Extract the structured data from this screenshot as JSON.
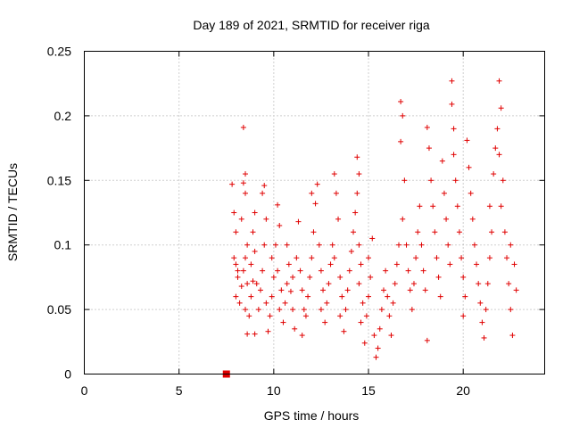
{
  "chart_data": {
    "type": "scatter",
    "title": "Day 189 of 2021, SRMTID for receiver riga",
    "xlabel": "GPS time / hours",
    "ylabel": "SRMTID / TECUs",
    "xlim": [
      0,
      24.3
    ],
    "ylim": [
      0,
      0.25
    ],
    "xticks": [
      "0",
      "5",
      "10",
      "15",
      "20"
    ],
    "yticks": [
      "0",
      "0.05",
      "0.1",
      "0.15",
      "0.2",
      "0.25"
    ],
    "grid": true,
    "legend": "none",
    "marker": "plus",
    "color": "#e00000",
    "series": [
      {
        "marker_point": [
          7.5,
          0.0
        ],
        "points": [
          [
            7.8,
            0.147
          ],
          [
            7.9,
            0.125
          ],
          [
            8.0,
            0.11
          ],
          [
            7.9,
            0.09
          ],
          [
            8.0,
            0.085
          ],
          [
            8.1,
            0.075
          ],
          [
            8.0,
            0.06
          ],
          [
            8.2,
            0.055
          ],
          [
            8.1,
            0.08
          ],
          [
            8.3,
            0.068
          ],
          [
            8.4,
            0.191
          ],
          [
            8.5,
            0.155
          ],
          [
            8.4,
            0.148
          ],
          [
            8.5,
            0.14
          ],
          [
            8.3,
            0.12
          ],
          [
            8.6,
            0.1
          ],
          [
            8.5,
            0.09
          ],
          [
            8.4,
            0.08
          ],
          [
            8.6,
            0.07
          ],
          [
            8.5,
            0.05
          ],
          [
            8.6,
            0.031
          ],
          [
            8.7,
            0.045
          ],
          [
            8.8,
            0.06
          ],
          [
            8.9,
            0.072
          ],
          [
            8.8,
            0.085
          ],
          [
            9.0,
            0.095
          ],
          [
            8.9,
            0.11
          ],
          [
            9.0,
            0.125
          ],
          [
            9.1,
            0.07
          ],
          [
            9.2,
            0.05
          ],
          [
            9.0,
            0.031
          ],
          [
            9.3,
            0.065
          ],
          [
            9.4,
            0.08
          ],
          [
            9.5,
            0.146
          ],
          [
            9.4,
            0.14
          ],
          [
            9.6,
            0.12
          ],
          [
            9.5,
            0.1
          ],
          [
            9.6,
            0.055
          ],
          [
            9.7,
            0.033
          ],
          [
            9.8,
            0.045
          ],
          [
            9.9,
            0.06
          ],
          [
            10.0,
            0.075
          ],
          [
            9.9,
            0.09
          ],
          [
            10.1,
            0.1
          ],
          [
            10.2,
            0.131
          ],
          [
            10.3,
            0.115
          ],
          [
            10.2,
            0.08
          ],
          [
            10.4,
            0.065
          ],
          [
            10.3,
            0.05
          ],
          [
            10.5,
            0.04
          ],
          [
            10.6,
            0.055
          ],
          [
            10.7,
            0.07
          ],
          [
            10.8,
            0.085
          ],
          [
            10.7,
            0.1
          ],
          [
            10.9,
            0.064
          ],
          [
            11.0,
            0.05
          ],
          [
            11.1,
            0.035
          ],
          [
            11.0,
            0.075
          ],
          [
            11.2,
            0.09
          ],
          [
            11.3,
            0.118
          ],
          [
            11.4,
            0.08
          ],
          [
            11.5,
            0.065
          ],
          [
            11.6,
            0.05
          ],
          [
            11.5,
            0.03
          ],
          [
            11.7,
            0.045
          ],
          [
            11.8,
            0.06
          ],
          [
            11.9,
            0.075
          ],
          [
            12.0,
            0.09
          ],
          [
            12.1,
            0.11
          ],
          [
            12.2,
            0.132
          ],
          [
            12.0,
            0.14
          ],
          [
            12.3,
            0.147
          ],
          [
            12.4,
            0.1
          ],
          [
            12.5,
            0.08
          ],
          [
            12.6,
            0.065
          ],
          [
            12.5,
            0.05
          ],
          [
            12.7,
            0.04
          ],
          [
            12.8,
            0.055
          ],
          [
            12.9,
            0.07
          ],
          [
            13.0,
            0.085
          ],
          [
            13.1,
            0.1
          ],
          [
            13.2,
            0.155
          ],
          [
            13.3,
            0.14
          ],
          [
            13.4,
            0.12
          ],
          [
            13.2,
            0.09
          ],
          [
            13.5,
            0.075
          ],
          [
            13.6,
            0.06
          ],
          [
            13.5,
            0.045
          ],
          [
            13.7,
            0.033
          ],
          [
            13.8,
            0.05
          ],
          [
            13.9,
            0.065
          ],
          [
            14.0,
            0.08
          ],
          [
            14.1,
            0.095
          ],
          [
            14.2,
            0.11
          ],
          [
            14.3,
            0.125
          ],
          [
            14.4,
            0.168
          ],
          [
            14.5,
            0.155
          ],
          [
            14.4,
            0.14
          ],
          [
            14.5,
            0.1
          ],
          [
            14.6,
            0.085
          ],
          [
            14.5,
            0.07
          ],
          [
            14.7,
            0.055
          ],
          [
            14.6,
            0.04
          ],
          [
            14.8,
            0.024
          ],
          [
            14.9,
            0.045
          ],
          [
            15.0,
            0.06
          ],
          [
            15.1,
            0.075
          ],
          [
            15.0,
            0.09
          ],
          [
            15.2,
            0.105
          ],
          [
            15.3,
            0.03
          ],
          [
            15.4,
            0.013
          ],
          [
            15.5,
            0.02
          ],
          [
            15.6,
            0.035
          ],
          [
            15.7,
            0.05
          ],
          [
            15.8,
            0.065
          ],
          [
            15.9,
            0.08
          ],
          [
            16.0,
            0.06
          ],
          [
            16.1,
            0.045
          ],
          [
            16.2,
            0.03
          ],
          [
            16.3,
            0.055
          ],
          [
            16.4,
            0.07
          ],
          [
            16.5,
            0.085
          ],
          [
            16.6,
            0.1
          ],
          [
            16.7,
            0.211
          ],
          [
            16.8,
            0.2
          ],
          [
            16.7,
            0.18
          ],
          [
            16.9,
            0.15
          ],
          [
            16.8,
            0.12
          ],
          [
            17.0,
            0.1
          ],
          [
            17.1,
            0.08
          ],
          [
            17.2,
            0.065
          ],
          [
            17.3,
            0.05
          ],
          [
            17.4,
            0.07
          ],
          [
            17.5,
            0.09
          ],
          [
            17.6,
            0.11
          ],
          [
            17.7,
            0.13
          ],
          [
            17.8,
            0.1
          ],
          [
            17.9,
            0.08
          ],
          [
            18.0,
            0.065
          ],
          [
            18.1,
            0.026
          ],
          [
            18.1,
            0.191
          ],
          [
            18.2,
            0.175
          ],
          [
            18.3,
            0.15
          ],
          [
            18.4,
            0.13
          ],
          [
            18.5,
            0.11
          ],
          [
            18.6,
            0.09
          ],
          [
            18.7,
            0.075
          ],
          [
            18.8,
            0.06
          ],
          [
            18.9,
            0.165
          ],
          [
            19.0,
            0.14
          ],
          [
            19.1,
            0.12
          ],
          [
            19.2,
            0.1
          ],
          [
            19.3,
            0.085
          ],
          [
            19.4,
            0.227
          ],
          [
            19.4,
            0.209
          ],
          [
            19.5,
            0.19
          ],
          [
            19.5,
            0.17
          ],
          [
            19.6,
            0.15
          ],
          [
            19.7,
            0.13
          ],
          [
            19.8,
            0.11
          ],
          [
            19.9,
            0.09
          ],
          [
            20.0,
            0.075
          ],
          [
            20.1,
            0.06
          ],
          [
            20.0,
            0.045
          ],
          [
            20.2,
            0.181
          ],
          [
            20.3,
            0.16
          ],
          [
            20.4,
            0.14
          ],
          [
            20.5,
            0.12
          ],
          [
            20.6,
            0.1
          ],
          [
            20.7,
            0.085
          ],
          [
            20.8,
            0.07
          ],
          [
            20.9,
            0.055
          ],
          [
            21.0,
            0.04
          ],
          [
            21.1,
            0.028
          ],
          [
            21.2,
            0.05
          ],
          [
            21.3,
            0.07
          ],
          [
            21.4,
            0.09
          ],
          [
            21.5,
            0.11
          ],
          [
            21.4,
            0.13
          ],
          [
            21.6,
            0.155
          ],
          [
            21.7,
            0.175
          ],
          [
            21.8,
            0.19
          ],
          [
            21.9,
            0.227
          ],
          [
            22.0,
            0.206
          ],
          [
            21.9,
            0.17
          ],
          [
            22.1,
            0.15
          ],
          [
            22.0,
            0.13
          ],
          [
            22.2,
            0.11
          ],
          [
            22.3,
            0.09
          ],
          [
            22.4,
            0.07
          ],
          [
            22.5,
            0.05
          ],
          [
            22.6,
            0.03
          ],
          [
            22.5,
            0.1
          ],
          [
            22.7,
            0.085
          ],
          [
            22.8,
            0.065
          ]
        ]
      }
    ]
  }
}
